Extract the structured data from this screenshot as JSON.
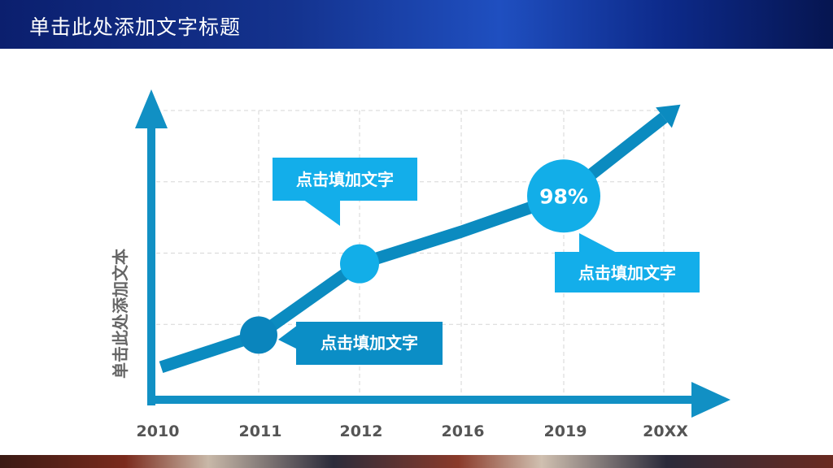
{
  "header": {
    "title": "单击此处添加文字标题"
  },
  "chart_data": {
    "type": "line",
    "title": "",
    "xlabel": "",
    "ylabel": "单击此处添加文本",
    "categories": [
      "2010",
      "2011",
      "2012",
      "2016",
      "2019",
      "20XX"
    ],
    "ylim": [
      0,
      4
    ],
    "series": [
      {
        "values": [
          0.4,
          0.85,
          1.85,
          2.3,
          2.8,
          3.9
        ]
      }
    ],
    "highlighted_points": [
      {
        "category": "2011",
        "color": "#0a85bd"
      },
      {
        "category": "2012",
        "color": "#12aee8"
      },
      {
        "category": "2019",
        "color": "#12aee8",
        "label": "98%"
      }
    ],
    "annotations": [
      {
        "text": "点击填加文字",
        "near": "2012"
      },
      {
        "text": "点击填加文字",
        "near": "2011"
      },
      {
        "text": "点击填加文字",
        "near": "2019"
      }
    ],
    "grid": true,
    "colors": {
      "axis": "#1190c4",
      "line": "#0b8bc0",
      "callout_light": "#13aeea",
      "callout_dark": "#0b8ec6"
    }
  }
}
